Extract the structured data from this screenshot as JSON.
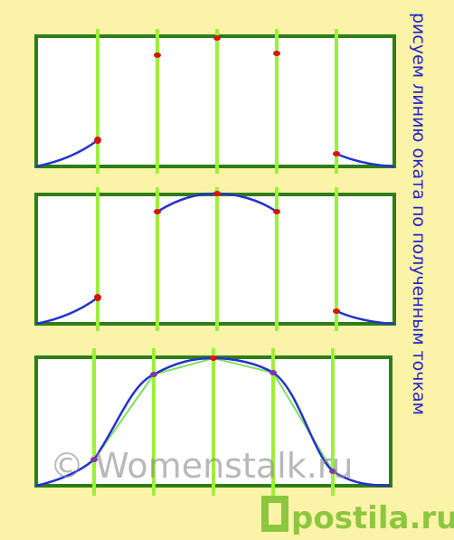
{
  "caption": "рисуем линию оката по полученным точкам",
  "watermark": "© Womenstalk.ru",
  "logo": "postila.ru"
}
